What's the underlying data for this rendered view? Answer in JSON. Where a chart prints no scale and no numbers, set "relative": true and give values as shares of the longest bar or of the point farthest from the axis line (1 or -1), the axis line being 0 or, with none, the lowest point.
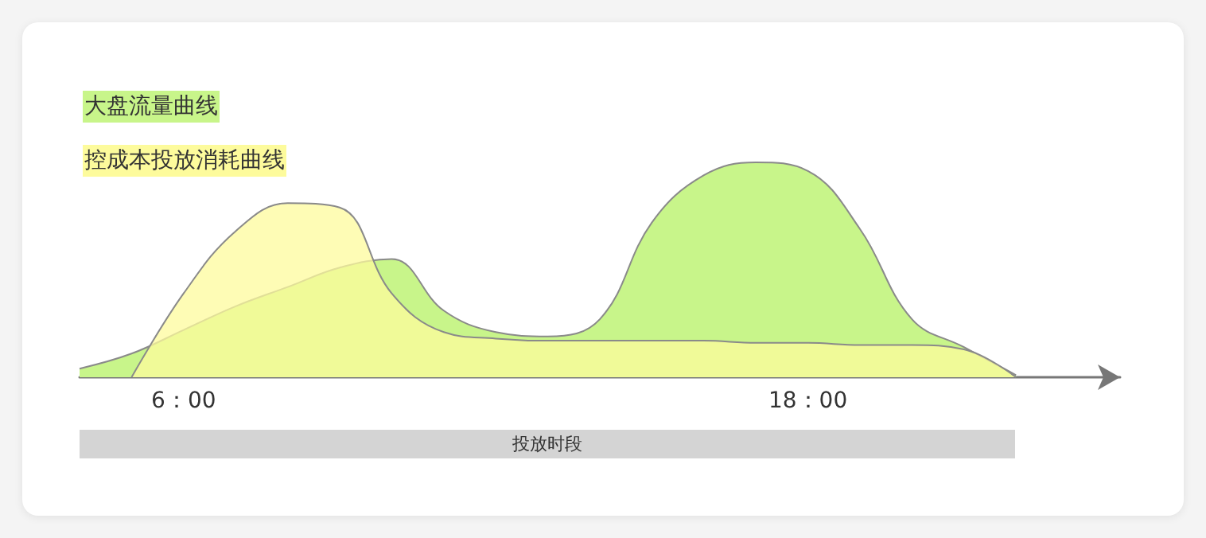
{
  "chart_data": {
    "type": "area",
    "relative": true,
    "categories": [
      null,
      null,
      "6：00",
      null,
      null,
      null,
      null,
      null,
      null,
      null,
      null,
      null,
      null,
      null,
      "18：00",
      null,
      null,
      null,
      null,
      null,
      null
    ],
    "series": [
      {
        "name": "大盘流量曲线",
        "color": "#c8f58a",
        "values": [
          0.04,
          0.11,
          0.22,
          0.33,
          0.42,
          0.51,
          0.55,
          0.31,
          0.21,
          0.19,
          0.27,
          0.72,
          0.94,
          1.0,
          0.96,
          0.69,
          0.27,
          0.14,
          0.01,
          null,
          null
        ]
      },
      {
        "name": "控成本投放消耗曲线",
        "color": "#fdfb9c",
        "values": [
          null,
          0.0,
          0.39,
          0.68,
          0.81,
          0.79,
          0.39,
          0.21,
          0.18,
          0.17,
          0.17,
          0.17,
          0.17,
          0.16,
          0.16,
          0.15,
          0.15,
          0.13,
          0.0,
          null,
          null
        ]
      }
    ],
    "annotations": [
      "投放时段"
    ],
    "legend": "top left",
    "marker": "none",
    "grid": false
  }
}
